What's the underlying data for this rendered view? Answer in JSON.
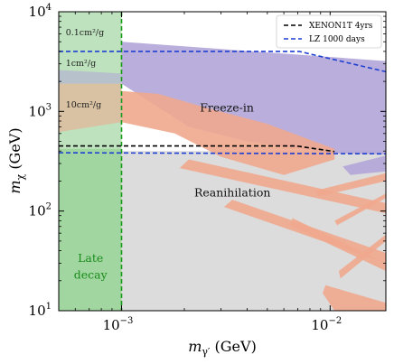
{
  "chart_data": {
    "type": "area",
    "xlabel": "m_γ' (GeV)",
    "ylabel": "m_χ (GeV)",
    "xscale": "log",
    "yscale": "log",
    "xlim": [
      0.0005,
      0.0185
    ],
    "ylim": [
      10,
      10000
    ],
    "x_ticks": [
      {
        "value": 0.001,
        "label": "10",
        "exp": "−3"
      },
      {
        "value": 0.01,
        "label": "10",
        "exp": "−2"
      }
    ],
    "y_ticks": [
      {
        "value": 10,
        "label": "10",
        "exp": "1"
      },
      {
        "value": 100,
        "label": "10",
        "exp": "2"
      },
      {
        "value": 1000,
        "label": "10",
        "exp": "3"
      },
      {
        "value": 10000,
        "label": "10",
        "exp": "4"
      }
    ],
    "grid": false,
    "legend_position": "top-right",
    "colors": {
      "freeze_in": "#b3a6d8",
      "reanihilation": "#f0a88e",
      "excluded_gray": "#dcdcdc",
      "late_decay": "#6cbf6c",
      "xenon": "#000000",
      "lz": "#1f3fd1"
    },
    "series": [
      {
        "name": "XENON1T 4yrs",
        "style": "dashed",
        "color": "#000000",
        "x": [
          0.0005,
          0.0069,
          0.0105
        ],
        "y": [
          450,
          450,
          395
        ]
      },
      {
        "name": "LZ 1000 days",
        "style": "dashed",
        "color": "#1f3fd1",
        "x": [
          0.0005,
          0.0071,
          0.0185
        ],
        "y": [
          4000,
          4000,
          2500
        ]
      },
      {
        "name": "",
        "style": "dashed",
        "color": "#1f3fd1",
        "x": [
          0.0005,
          0.0185
        ],
        "y": [
          385,
          375
        ]
      }
    ],
    "late_decay_boundary_x": 0.001,
    "annotations": [
      {
        "key": "freeze_in",
        "text": "Freeze-in",
        "x": 0.0032,
        "y": 1000
      },
      {
        "key": "reanihilation",
        "text": "Reanihilation",
        "x": 0.0034,
        "y": 140
      },
      {
        "key": "late_decay_1",
        "text": "Late",
        "x": 0.00071,
        "y": 31
      },
      {
        "key": "late_decay_2",
        "text": "decay",
        "x": 0.00071,
        "y": 21
      },
      {
        "key": "sigma_01",
        "text": "0.1cm²/g",
        "x": 0.00054,
        "y": 5800
      },
      {
        "key": "sigma_1",
        "text": "1cm²/g",
        "x": 0.00054,
        "y": 2850
      },
      {
        "key": "sigma_10",
        "text": "10cm²/g",
        "x": 0.00054,
        "y": 1100
      }
    ]
  }
}
